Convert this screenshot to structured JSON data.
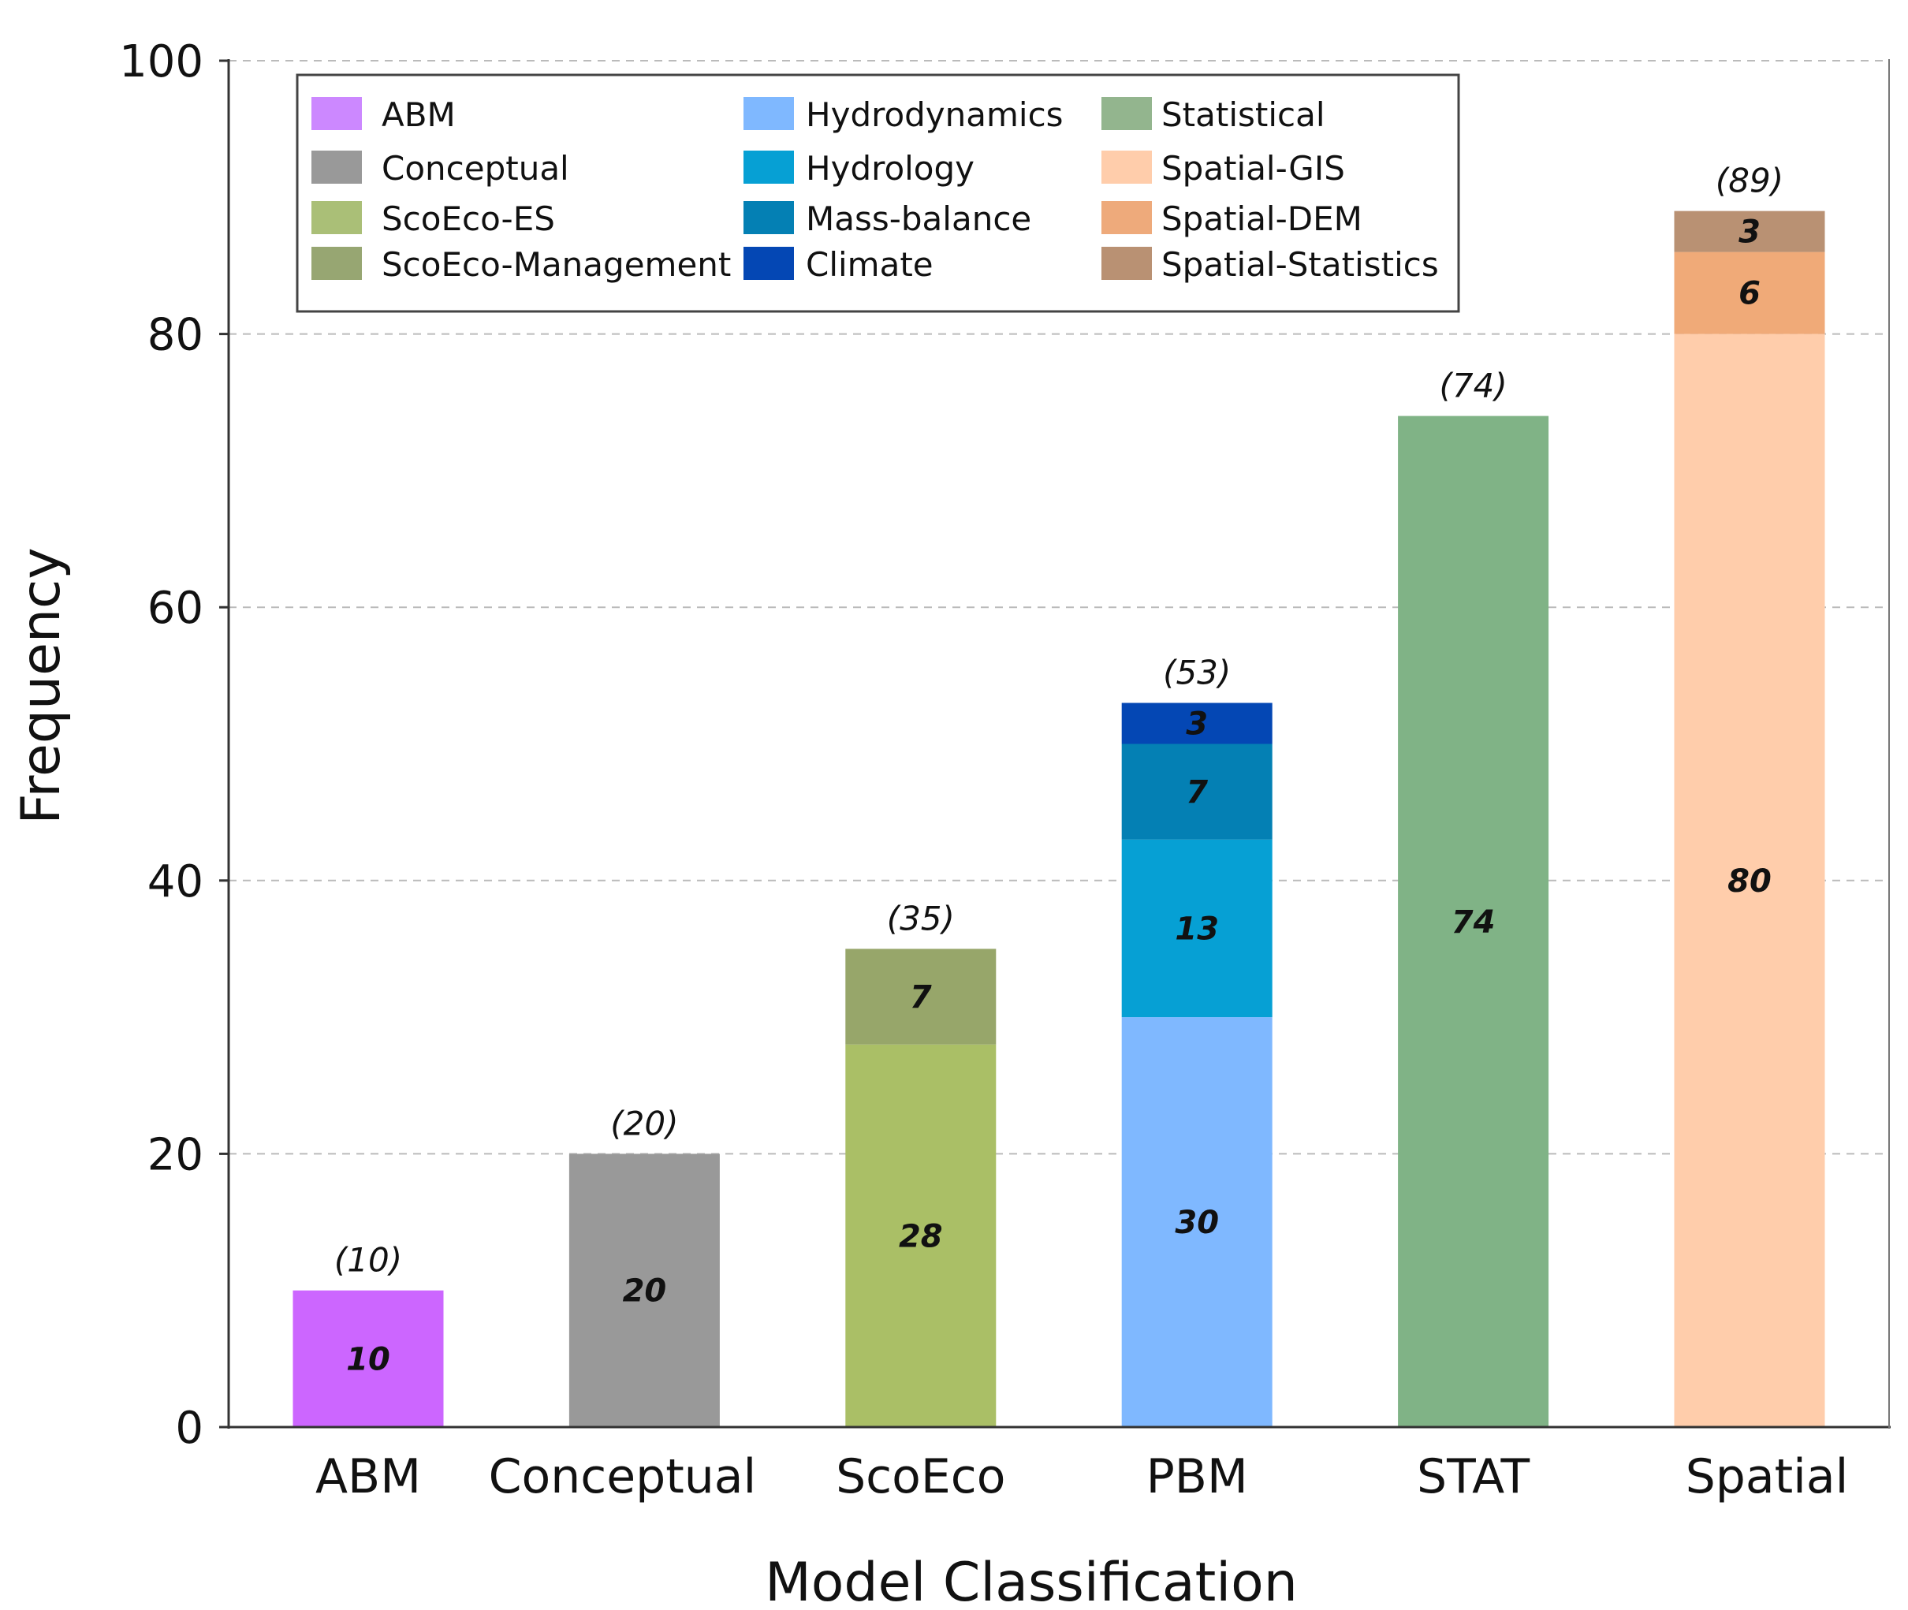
{
  "chart_data": {
    "type": "bar",
    "stacked": true,
    "title": "",
    "xlabel": "Model Classification",
    "ylabel": "Frequency",
    "ylim": [
      0,
      100
    ],
    "yticks": [
      "0",
      "20",
      "40",
      "60",
      "80",
      "100"
    ],
    "grid": "horizontal dashed",
    "legend_position": "top-left",
    "categories": [
      "ABM",
      "Conceptual",
      "ScoEco",
      "PBM",
      "STAT",
      "Spatial"
    ],
    "totals": [
      "(10)",
      "(20)",
      "(35)",
      "(53)",
      "(74)",
      "(89)"
    ],
    "stacks": [
      [
        {
          "name": "ABM",
          "value": 10,
          "color": "#cc66ff"
        }
      ],
      [
        {
          "name": "Conceptual",
          "value": 20,
          "color": "#999999"
        }
      ],
      [
        {
          "name": "ScoEco-ES",
          "value": 28,
          "color": "#aabf66"
        },
        {
          "name": "ScoEco-Management",
          "value": 7,
          "color": "#97a66a"
        }
      ],
      [
        {
          "name": "Hydrodynamics",
          "value": 30,
          "color": "#7fb8ff"
        },
        {
          "name": "Hydrology",
          "value": 13,
          "color": "#06a0d4"
        },
        {
          "name": "Mass-balance",
          "value": 7,
          "color": "#0480b4"
        },
        {
          "name": "Climate",
          "value": 3,
          "color": "#0447b4"
        }
      ],
      [
        {
          "name": "Statistical",
          "value": 74,
          "color": "#80b386"
        }
      ],
      [
        {
          "name": "Spatial-GIS",
          "value": 80,
          "color": "#ffcdab"
        },
        {
          "name": "Spatial-DEM",
          "value": 6,
          "color": "#f0aa78"
        },
        {
          "name": "Spatial-Statistics",
          "value": 3,
          "color": "#b99173"
        }
      ]
    ],
    "legend": [
      {
        "label": "ABM",
        "color": "#cc88ff"
      },
      {
        "label": "Conceptual",
        "color": "#999999"
      },
      {
        "label": "ScoEco-ES",
        "color": "#aabf77"
      },
      {
        "label": "ScoEco-Management",
        "color": "#97a672"
      },
      {
        "label": "Hydrodynamics",
        "color": "#7fb8ff"
      },
      {
        "label": "Hydrology",
        "color": "#06a0d4"
      },
      {
        "label": "Mass-balance",
        "color": "#0480b4"
      },
      {
        "label": "Climate",
        "color": "#0447b4"
      },
      {
        "label": "Statistical",
        "color": "#93b58e"
      },
      {
        "label": "Spatial-GIS",
        "color": "#ffcdab"
      },
      {
        "label": "Spatial-DEM",
        "color": "#eeaa7b"
      },
      {
        "label": "Spatial-Statistics",
        "color": "#b99173"
      }
    ]
  }
}
